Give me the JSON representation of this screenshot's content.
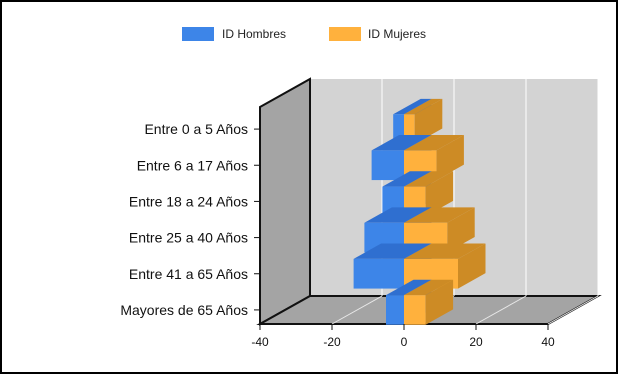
{
  "chart_data": {
    "type": "bar",
    "orientation": "horizontal",
    "style": "3d-population-pyramid",
    "title": "",
    "xlabel": "",
    "ylabel": "",
    "categories": [
      "Entre 0 a 5 Años",
      "Entre 6 a 17 Años",
      "Entre 18 a 24 Años",
      "Entre 25 a 40 Años",
      "Entre 41 a 65 Años",
      "Mayores de 65 Años"
    ],
    "series": [
      {
        "name": "ID Hombres",
        "values": [
          -3,
          -9,
          -6,
          -11,
          -14,
          -5
        ],
        "color": "#3d85e8"
      },
      {
        "name": "ID Mujeres",
        "values": [
          3,
          9,
          6,
          12,
          15,
          6
        ],
        "color": "#ffb13d"
      }
    ],
    "xlim": [
      -40,
      40
    ],
    "xticks": [
      "-40",
      "-20",
      "0",
      "20",
      "40"
    ],
    "legend_position": "top",
    "grid": true,
    "colors": {
      "wall": "#d3d3d3",
      "side_wall": "#a4a4a4",
      "floor": "#a4a4a4",
      "hombres_top": "#2f6fd0",
      "mujeres_side": "#cd8b25"
    }
  }
}
